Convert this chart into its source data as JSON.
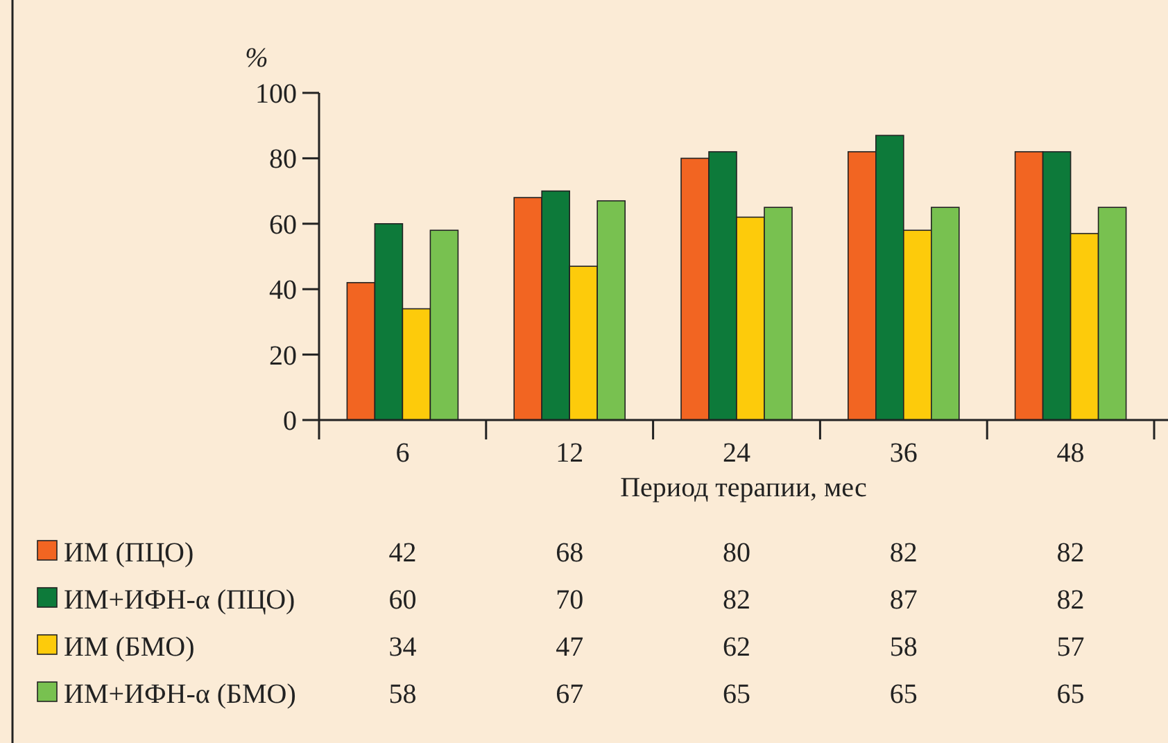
{
  "chart_data": {
    "type": "bar",
    "ylabel": "%",
    "xlabel": "Период терапии, мес",
    "categories": [
      "6",
      "12",
      "24",
      "36",
      "48"
    ],
    "series": [
      {
        "name": "ИМ (ПЦО)",
        "color": "#f26522",
        "values": [
          42,
          68,
          80,
          82,
          82
        ]
      },
      {
        "name": "ИМ+ИФН-α (ПЦО)",
        "color": "#0d7a3a",
        "values": [
          60,
          70,
          82,
          87,
          82
        ]
      },
      {
        "name": "ИМ (БМО)",
        "color": "#fdcb0b",
        "values": [
          34,
          47,
          62,
          58,
          57
        ]
      },
      {
        "name": "ИМ+ИФН-α (БМО)",
        "color": "#78c150",
        "values": [
          58,
          67,
          65,
          65,
          65
        ]
      }
    ],
    "ylim": [
      0,
      100
    ],
    "yticks": [
      0,
      20,
      40,
      60,
      80,
      100
    ],
    "grid": false,
    "legend": "bottom left",
    "data_labels": true
  }
}
